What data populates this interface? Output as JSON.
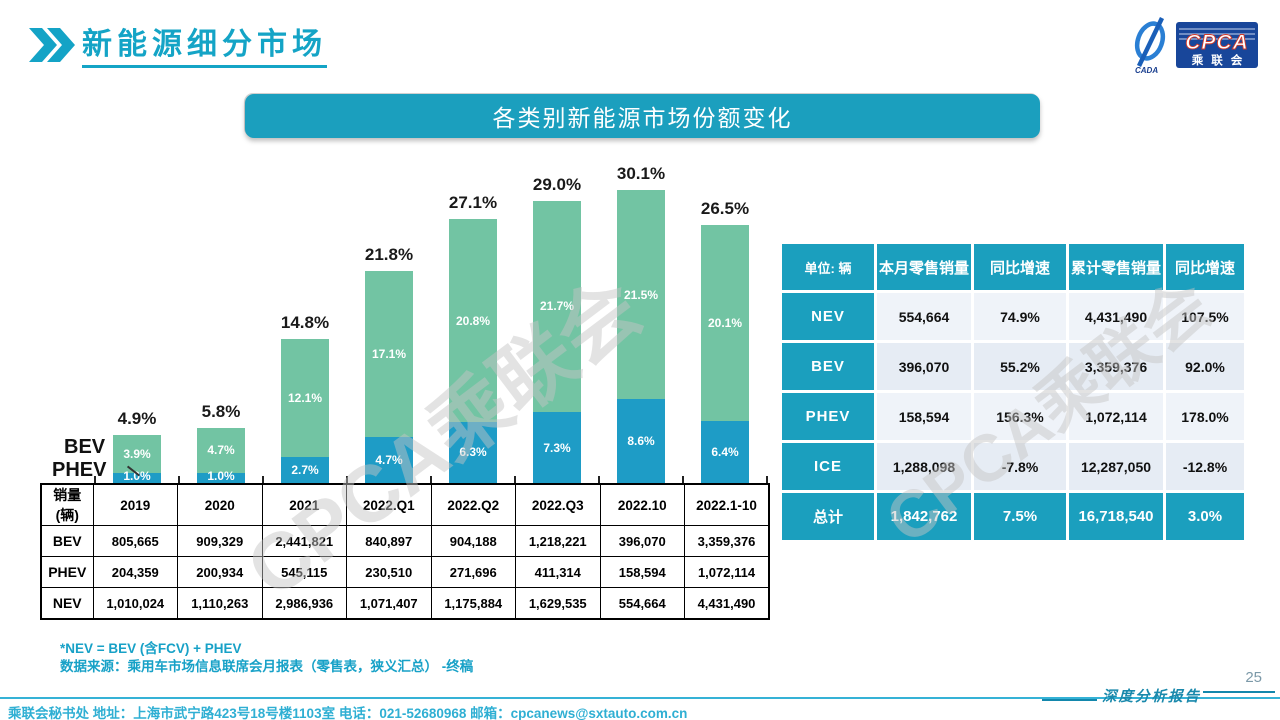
{
  "page": {
    "title": "新能源细分市场",
    "page_number": "25",
    "report_label": "深度分析报告",
    "watermark": "CPCA乘联会",
    "notes": [
      "*NEV = BEV (含FCV) + PHEV",
      "数据来源：乘用车市场信息联席会月报表（零售表，狭义汇总） -终稿"
    ],
    "footer": "乘联会秘书处   地址：上海市武宁路423号18号楼1103室 电话：021-52680968   邮箱：cpcanews@sxtauto.com.cn"
  },
  "logo": {
    "acronym": "CPCA",
    "name_cn": "乘联会",
    "emblem": "CADA"
  },
  "banner": {
    "title": "各类别新能源市场份额变化"
  },
  "chart_data": {
    "type": "bar",
    "stacked": true,
    "title": "各类别新能源市场份额变化",
    "unit": "%",
    "categories": [
      "2019",
      "2020",
      "2021",
      "2022.Q1",
      "2022.Q2",
      "2022.Q3",
      "2022.10",
      "2022.1-10"
    ],
    "series": [
      {
        "name": "PHEV",
        "color": "#1E9CC6",
        "values": [
          1.0,
          1.0,
          2.7,
          4.7,
          6.3,
          7.3,
          8.6,
          6.4
        ]
      },
      {
        "name": "BEV",
        "color": "#72C4A3",
        "values": [
          3.9,
          4.7,
          12.1,
          17.1,
          20.8,
          21.7,
          21.5,
          20.1
        ]
      }
    ],
    "totals": [
      4.9,
      5.8,
      14.8,
      21.8,
      27.1,
      29.0,
      30.1,
      26.5
    ],
    "ylim": [
      0,
      32
    ],
    "grid": false,
    "legend_labels": {
      "bev": "BEV",
      "phev": "PHEV"
    }
  },
  "sales_table": {
    "header": [
      "销量(辆)",
      "2019",
      "2020",
      "2021",
      "2022.Q1",
      "2022.Q2",
      "2022.Q3",
      "2022.10",
      "2022.1-10"
    ],
    "rows": [
      {
        "label": "BEV",
        "values": [
          "805,665",
          "909,329",
          "2,441,821",
          "840,897",
          "904,188",
          "1,218,221",
          "396,070",
          "3,359,376"
        ]
      },
      {
        "label": "PHEV",
        "values": [
          "204,359",
          "200,934",
          "545,115",
          "230,510",
          "271,696",
          "411,314",
          "158,594",
          "1,072,114"
        ]
      },
      {
        "label": "NEV",
        "values": [
          "1,010,024",
          "1,110,263",
          "2,986,936",
          "1,071,407",
          "1,175,884",
          "1,629,535",
          "554,664",
          "4,431,490"
        ]
      }
    ]
  },
  "summary_table": {
    "header": [
      "单位: 辆",
      "本月零售销量",
      "同比增速",
      "累计零售销量",
      "同比增速"
    ],
    "rows": [
      {
        "label": "NEV",
        "values": [
          "554,664",
          "74.9%",
          "4,431,490",
          "107.5%"
        ]
      },
      {
        "label": "BEV",
        "values": [
          "396,070",
          "55.2%",
          "3,359,376",
          "92.0%"
        ]
      },
      {
        "label": "PHEV",
        "values": [
          "158,594",
          "156.3%",
          "1,072,114",
          "178.0%"
        ]
      },
      {
        "label": "ICE",
        "values": [
          "1,288,098",
          "-7.8%",
          "12,287,050",
          "-12.8%"
        ]
      }
    ],
    "total_row": {
      "label": "总计",
      "values": [
        "1,842,762",
        "7.5%",
        "16,718,540",
        "3.0%"
      ]
    }
  },
  "colors": {
    "title_teal": "#14A4C6",
    "banner_teal": "#1B9FBE",
    "bar_blue": "#1E9CC6",
    "bar_green": "#72C4A3",
    "table_teal": "#1B9FBE",
    "cell_light": "#EFF3F9",
    "cell_dark": "#E6ECF4",
    "footer_teal": "#2FAFD3"
  }
}
